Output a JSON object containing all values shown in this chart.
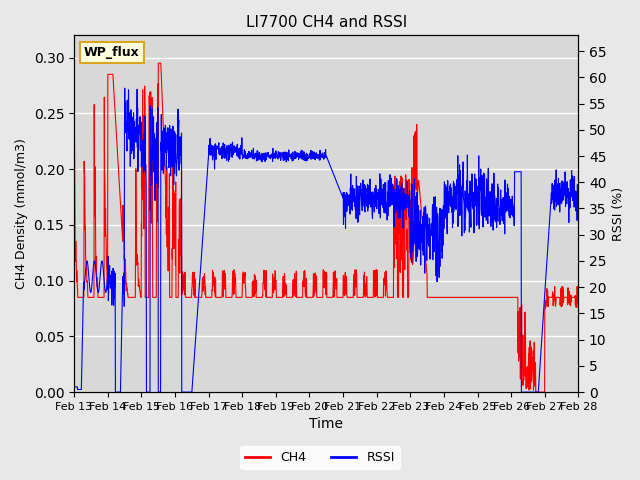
{
  "title": "LI7700 CH4 and RSSI",
  "xlabel": "Time",
  "ylabel_left": "CH4 Density (mmol/m3)",
  "ylabel_right": "RSSI (%)",
  "site_label": "WP_flux",
  "x_start": 13,
  "x_end": 28,
  "x_ticks": [
    13,
    14,
    15,
    16,
    17,
    18,
    19,
    20,
    21,
    22,
    23,
    24,
    25,
    26,
    27,
    28
  ],
  "x_tick_labels": [
    "Feb 13",
    "Feb 14",
    "Feb 15",
    "Feb 16",
    "Feb 17",
    "Feb 18",
    "Feb 19",
    "Feb 20",
    "Feb 21",
    "Feb 22",
    "Feb 23",
    "Feb 24",
    "Feb 25",
    "Feb 26",
    "Feb 27",
    "Feb 28"
  ],
  "ylim_left": [
    0,
    0.32
  ],
  "ylim_right": [
    0,
    68
  ],
  "yticks_left": [
    0.0,
    0.05,
    0.1,
    0.15,
    0.2,
    0.25,
    0.3
  ],
  "yticks_right": [
    0,
    5,
    10,
    15,
    20,
    25,
    30,
    35,
    40,
    45,
    50,
    55,
    60,
    65
  ],
  "bg_color": "#e8e8e8",
  "plot_bg_color": "#d8d8d8",
  "grid_color": "white",
  "ch4_color": "red",
  "rssi_color": "blue",
  "legend_ch4": "CH4",
  "legend_rssi": "RSSI"
}
